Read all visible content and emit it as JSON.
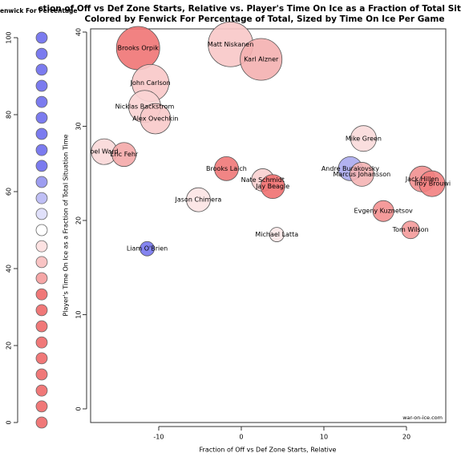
{
  "chart_data": {
    "type": "bubble",
    "title": "ction of Off vs Def Zone Starts, Relative vs. Player's Time On Ice as a Fraction of Total Situation",
    "subtitle": "Colored by Fenwick For Percentage of Total, Sized by Time On Ice Per Game",
    "x_label": "Fraction of Off vs Def Zone Starts, Relative",
    "y_label": "Player's Time On Ice as a Fraction of Total Situation Time",
    "xlim": [
      -18.25,
      24.76
    ],
    "ylim": [
      -1.45,
      40.34
    ],
    "xticks": [
      -10,
      0,
      10,
      20
    ],
    "yticks": [
      0,
      10,
      20,
      30,
      40
    ],
    "labels": [
      "Brooks Orpik",
      "Matt Niskanen",
      "Karl Alzner",
      "John Carlson",
      "Nicklas Backstrom",
      "Alex Ovechkin",
      "Mike Green",
      "oel Ward",
      "Eric Fehr",
      "Brooks Laich",
      "Andre Burakovsky",
      "Marcus Johansson",
      "Nate Schmidt",
      "Jay Beagle",
      "Jack Hillen",
      "Troy Brouwi",
      "Jason Chimera",
      "Evgeny Kuznetsov",
      "Tom Wilson",
      "Michael Latta",
      "Liam O'Brien"
    ],
    "x": [
      -12.5,
      -1.3,
      2.4,
      -11.0,
      -11.7,
      -10.4,
      14.8,
      -16.6,
      -14.2,
      -1.8,
      13.2,
      14.6,
      2.6,
      3.8,
      21.9,
      23.1,
      -5.2,
      17.2,
      20.5,
      4.3,
      -11.4
    ],
    "y": [
      38.3,
      38.7,
      37.1,
      34.6,
      32.1,
      30.8,
      28.7,
      27.3,
      27.0,
      25.5,
      25.5,
      24.9,
      24.3,
      23.6,
      24.4,
      23.9,
      22.2,
      21.0,
      19.0,
      18.5,
      17.0
    ],
    "sizes": [
      22,
      22.6,
      21.4,
      19.5,
      17.6,
      16.9,
      15.1,
      15.1,
      14.4,
      14.4,
      14.4,
      14.4,
      13.8,
      14.4,
      15.1,
      15.1,
      14.4,
      13.2,
      11.9,
      10.6,
      10.6
    ],
    "colors": [
      "#f07474",
      "#f8c8c8",
      "#f4b0b0",
      "#f8c8c8",
      "#fad4d4",
      "#f8caca",
      "#fadada",
      "#fad8d8",
      "#f4a8a8",
      "#f07878",
      "#aaaaee",
      "#f4b4b4",
      "#fad0d0",
      "#f07070",
      "#f29090",
      "#f28080",
      "#fce4e4",
      "#f49090",
      "#f49a9a",
      "#fbe8e8",
      "#7777ee"
    ],
    "watermark": "war-on-ice.com",
    "legend": {
      "title": "enwick For Percentage",
      "ylim": [
        0,
        100
      ],
      "yticks": [
        0,
        20,
        40,
        60,
        80,
        100
      ],
      "levels": [
        100,
        95.8,
        91.7,
        87.5,
        83.3,
        79.2,
        75,
        70.8,
        66.7,
        62.5,
        58.3,
        54.2,
        50,
        45.8,
        41.7,
        37.5,
        33.3,
        29.2,
        25,
        20.8,
        16.7,
        12.5,
        8.3,
        4.2,
        0
      ],
      "colors": [
        "#7b7bef",
        "#7b7bef",
        "#7b7bef",
        "#7b7bef",
        "#7b7bef",
        "#7b7bef",
        "#7b7bef",
        "#7b7bef",
        "#7b7bef",
        "#9d9df0",
        "#bfbff5",
        "#e0e0fa",
        "#ffffff",
        "#fde2e2",
        "#f9c4c4",
        "#f5a6a6",
        "#f07878",
        "#f07878",
        "#f07878",
        "#f07878",
        "#f07878",
        "#f07878",
        "#f07878",
        "#f07878",
        "#f07878"
      ]
    }
  }
}
